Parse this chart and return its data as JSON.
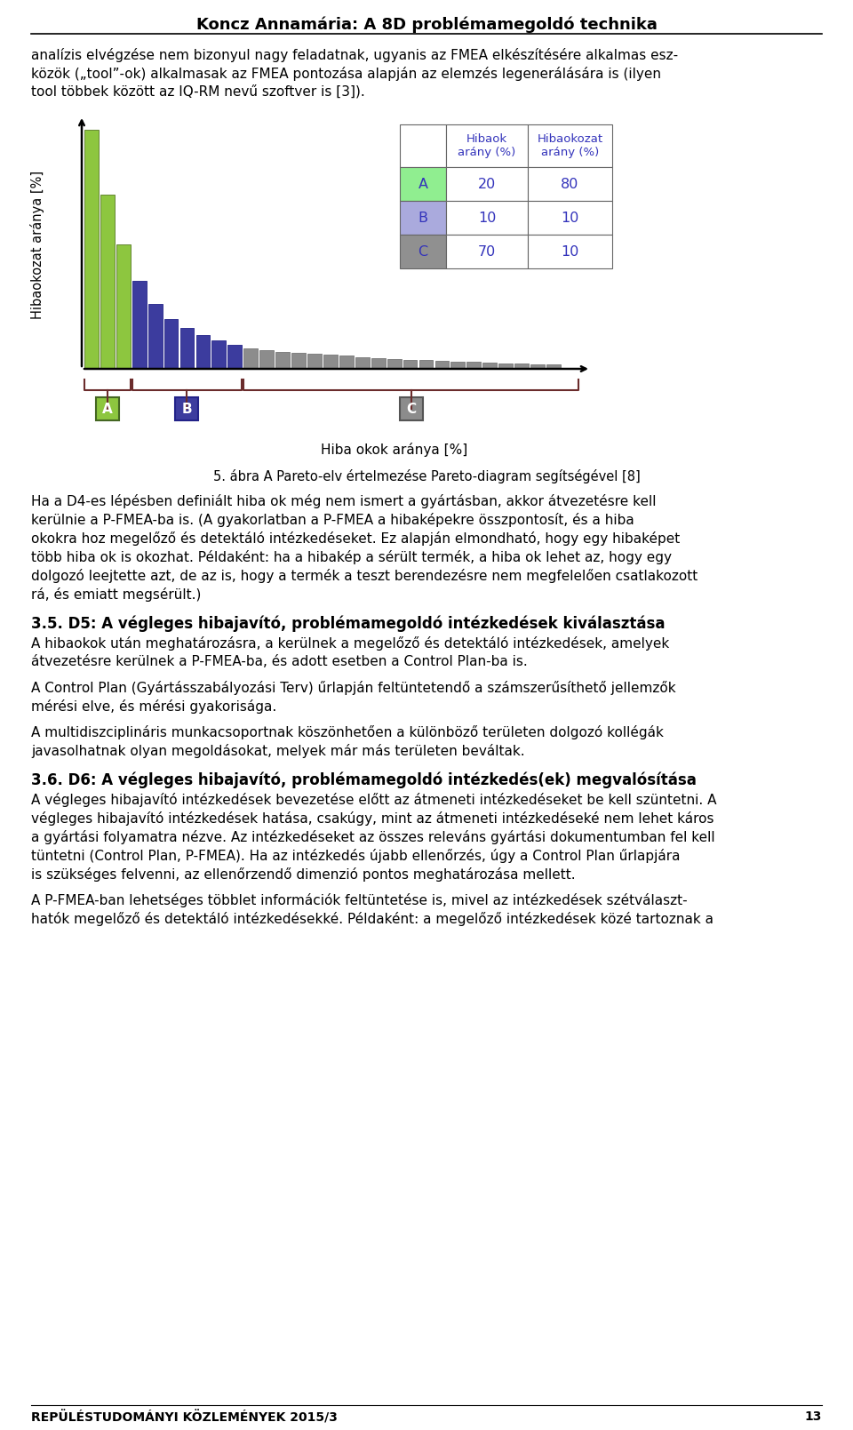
{
  "title": "Koncz Annamária: A 8D problémamegoldó technika",
  "page_bg": "#ffffff",
  "text_color": "#000000",
  "blue_text": "#3333bb",
  "para1_lines": [
    "analízis elvégzése nem bizonyul nagy feladatnak, ugyanis az FMEA elkészítésére alkalmas esz-",
    "közök („tool”-ok) alkalmasak az FMEA pontozása alapján az elemzés legenerálására is (ilyen",
    "tool többek között az IQ-RM nevű szoftver is [3])."
  ],
  "ylabel": "Hibaokozat aránya [%]",
  "xlabel": "Hiba okok aránya [%]",
  "caption": "5. ábra A Pareto-elv értelmezése Pareto-diagram segítségével [8]",
  "para2_lines": [
    "Ha a D4-es lépésben definiált hiba ok még nem ismert a gyártásban, akkor átvezetésre kell",
    "kerülnie a P-FMEA-ba is. (A gyakorlatban a P-FMEA a hibaképekre összpontosít, és a hiba",
    "okokra hoz megelőző és detektáló intézkedéseket. Ez alapján elmondható, hogy egy hibaképet",
    "több hiba ok is okozhat. Példaként: ha a hibakép a sérült termék, a hiba ok lehet az, hogy egy",
    "dolgozó leejtette azt, de az is, hogy a termék a teszt berendezésre nem megfelelően csatlakozott",
    "rá, és emiatt megsérült.)"
  ],
  "heading1": "3.5. D5: A végleges hibajavító, problémamegoldó intézkedések kiválasztása",
  "para3_lines": [
    "A hibaokok után meghatározásra, a kerülnek a megelőző és detektáló intézkedések, amelyek",
    "átvezetésre kerülnek a P-FMEA-ba, és adott esetben a Control Plan-ba is."
  ],
  "para4_lines": [
    "A Control Plan (Gyártásszabályozási Terv) űrlapján feltüntetendő a számszerűsíthető jellemzők",
    "mérési elve, és mérési gyakorisága."
  ],
  "para5_lines": [
    "A multidiszciplináris munkacsoportnak köszönhetően a különböző területen dolgozó kollégák",
    "javasolhatnak olyan megoldásokat, melyek már más területen beváltak."
  ],
  "heading2": "3.6. D6: A végleges hibajavító, problémamegoldó intézkedés(ek) megvalósítása",
  "para6_lines": [
    "A végleges hibajavító intézkedések bevezetése előtt az átmeneti intézkedéseket be kell szüntetni. A",
    "végleges hibajavító intézkedések hatása, csakúgy, mint az átmeneti intézkedéseké nem lehet káros",
    "a gyártási folyamatra nézve. Az intézkedéseket az összes releváns gyártási dokumentumban fel kell",
    "tüntetni (Control Plan, P-FMEA). Ha az intézkedés újabb ellenőrzés, úgy a Control Plan űrlapjára",
    "is szükséges felvenni, az ellenőrzendő dimenzió pontos meghatározása mellett."
  ],
  "para7_lines": [
    "A P-FMEA-ban lehetséges többlet információk feltüntetése is, mivel az intézkedések szétválaszt-",
    "hatók megelőző és detektáló intézkedésekké. Példaként: a megelőző intézkedések közé tartoznak a"
  ],
  "footer": "REPÜLÉSTUDOMÁNYI KÖZLEMÉNYEK 2015/3",
  "footer_page": "13",
  "table_headers": [
    "",
    "Hibaok\narány (%)",
    "Hibaokozat\narány (%)"
  ],
  "table_rows": [
    [
      "A",
      "20",
      "80"
    ],
    [
      "B",
      "10",
      "10"
    ],
    [
      "C",
      "70",
      "10"
    ]
  ],
  "table_row_colors": [
    "#90ee90",
    "#aaaadd",
    "#909090"
  ],
  "bar_green": "#8dc63f",
  "bar_blue": "#3c3c9e",
  "bar_gray": "#8c8c8c",
  "green_bars": [
    100,
    73,
    52
  ],
  "blue_bars": [
    37,
    27,
    21,
    17,
    14,
    12,
    10
  ],
  "gray_bars": [
    8.5,
    7.8,
    7.2,
    6.7,
    6.2,
    5.8,
    5.4,
    5.0,
    4.6,
    4.2,
    3.9,
    3.6,
    3.3,
    3.0,
    2.8,
    2.6,
    2.4,
    2.2,
    2.0,
    1.8
  ]
}
